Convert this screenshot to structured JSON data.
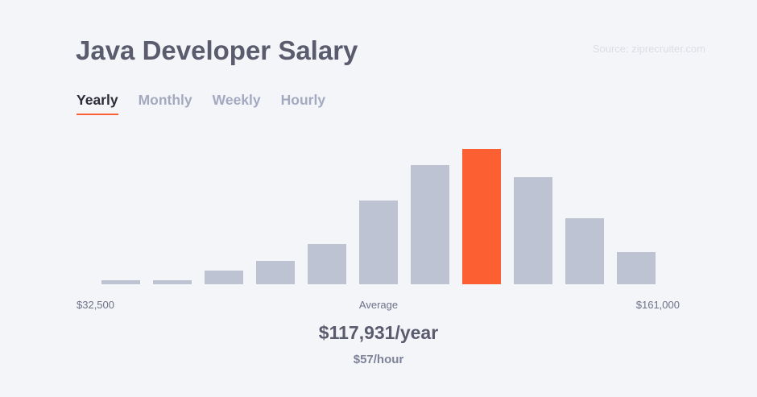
{
  "header": {
    "title": "Java Developer Salary",
    "source": "Source: ziprecruiter.com"
  },
  "tabs": [
    {
      "label": "Yearly",
      "active": true
    },
    {
      "label": "Monthly",
      "active": false
    },
    {
      "label": "Weekly",
      "active": false
    },
    {
      "label": "Hourly",
      "active": false
    }
  ],
  "colors": {
    "accent": "#fc5f32",
    "bar": "#bdc3d3",
    "background": "#f4f5f9"
  },
  "labels": {
    "min": "$32,500",
    "average": "Average",
    "max": "$161,000"
  },
  "summary": {
    "average_value": "$117,931/year",
    "hourly_value": "$57/hour"
  },
  "chart_data": {
    "type": "bar",
    "title": "Java Developer Salary",
    "xlabel": "",
    "ylabel": "",
    "categories": [
      "1",
      "2",
      "3",
      "4",
      "5",
      "6",
      "7",
      "8",
      "9",
      "10",
      "11"
    ],
    "values": [
      3,
      3,
      10,
      17,
      30,
      62,
      88,
      100,
      79,
      49,
      24
    ],
    "highlight_index": 7,
    "x_range_labels": [
      "$32,500",
      "$161,000"
    ],
    "ylim": [
      0,
      100
    ],
    "grid": false,
    "legend": "none"
  }
}
